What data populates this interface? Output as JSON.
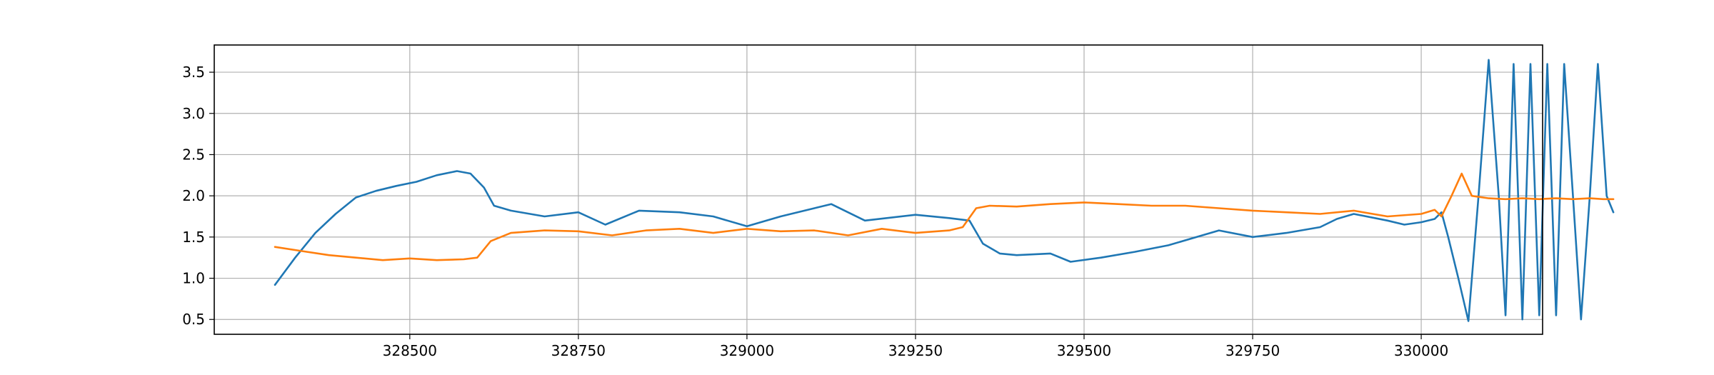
{
  "chart_data": {
    "type": "line",
    "title": "",
    "xlabel": "",
    "ylabel": "",
    "xlim": [
      328210,
      330180
    ],
    "ylim": [
      0.32,
      3.83
    ],
    "grid": true,
    "legend": "none",
    "x_ticks": [
      {
        "value": 328500,
        "label": "328500"
      },
      {
        "value": 328750,
        "label": "328750"
      },
      {
        "value": 329000,
        "label": "329000"
      },
      {
        "value": 329250,
        "label": "329250"
      },
      {
        "value": 329500,
        "label": "329500"
      },
      {
        "value": 329750,
        "label": "329750"
      },
      {
        "value": 330000,
        "label": "330000"
      }
    ],
    "y_ticks": [
      {
        "value": 0.5,
        "label": "0.5"
      },
      {
        "value": 1.0,
        "label": "1.0"
      },
      {
        "value": 1.5,
        "label": "1.5"
      },
      {
        "value": 2.0,
        "label": "2.0"
      },
      {
        "value": 2.5,
        "label": "2.5"
      },
      {
        "value": 3.0,
        "label": "3.0"
      },
      {
        "value": 3.5,
        "label": "3.5"
      }
    ],
    "series": [
      {
        "color": "#1f77b4",
        "x": [
          328300,
          328330,
          328360,
          328390,
          328420,
          328450,
          328480,
          328510,
          328540,
          328570,
          328590,
          328610,
          328625,
          328650,
          328700,
          328750,
          328790,
          328840,
          328900,
          328950,
          329000,
          329050,
          329100,
          329125,
          329175,
          329250,
          329300,
          329330,
          329350,
          329375,
          329400,
          329450,
          329480,
          329525,
          329575,
          329625,
          329700,
          329750,
          329800,
          329850,
          329875,
          329900,
          329950,
          329975,
          330000,
          330020,
          330030,
          330040,
          330055,
          330070,
          330085,
          330100,
          330115,
          330125,
          330137,
          330150,
          330162,
          330175,
          330187,
          330200,
          330212,
          330225,
          330237,
          330250,
          330262,
          330275,
          330285
        ],
        "y": [
          0.92,
          1.25,
          1.55,
          1.78,
          1.98,
          2.06,
          2.12,
          2.17,
          2.25,
          2.3,
          2.27,
          2.1,
          1.88,
          1.82,
          1.75,
          1.8,
          1.65,
          1.82,
          1.8,
          1.75,
          1.63,
          1.75,
          1.85,
          1.9,
          1.7,
          1.77,
          1.73,
          1.7,
          1.42,
          1.3,
          1.28,
          1.3,
          1.2,
          1.25,
          1.32,
          1.4,
          1.58,
          1.5,
          1.55,
          1.62,
          1.72,
          1.78,
          1.7,
          1.65,
          1.68,
          1.72,
          1.8,
          1.5,
          1.0,
          0.48,
          2.0,
          3.65,
          2.0,
          0.55,
          3.6,
          0.5,
          3.6,
          0.55,
          3.6,
          0.55,
          3.6,
          2.0,
          0.5,
          2.0,
          3.6,
          2.0,
          1.8
        ]
      },
      {
        "color": "#ff7f0e",
        "x": [
          328300,
          328340,
          328380,
          328420,
          328460,
          328500,
          328540,
          328580,
          328600,
          328620,
          328650,
          328700,
          328750,
          328800,
          328850,
          328900,
          328950,
          329000,
          329050,
          329100,
          329150,
          329200,
          329250,
          329300,
          329320,
          329340,
          329360,
          329400,
          329450,
          329500,
          329550,
          329600,
          329650,
          329700,
          329750,
          329800,
          329850,
          329900,
          329950,
          330000,
          330020,
          330030,
          330045,
          330060,
          330075,
          330100,
          330125,
          330150,
          330175,
          330200,
          330225,
          330250,
          330270,
          330285
        ],
        "y": [
          1.38,
          1.33,
          1.28,
          1.25,
          1.22,
          1.24,
          1.22,
          1.23,
          1.25,
          1.45,
          1.55,
          1.58,
          1.57,
          1.52,
          1.58,
          1.6,
          1.55,
          1.6,
          1.57,
          1.58,
          1.52,
          1.6,
          1.55,
          1.58,
          1.62,
          1.85,
          1.88,
          1.87,
          1.9,
          1.92,
          1.9,
          1.88,
          1.88,
          1.85,
          1.82,
          1.8,
          1.78,
          1.82,
          1.75,
          1.78,
          1.83,
          1.75,
          2.0,
          2.27,
          2.0,
          1.97,
          1.96,
          1.97,
          1.96,
          1.97,
          1.96,
          1.97,
          1.96,
          1.96
        ]
      }
    ]
  }
}
